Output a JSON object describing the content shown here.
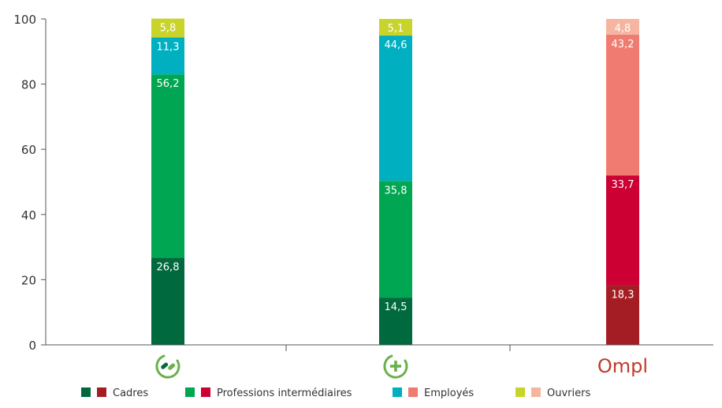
{
  "chart_data": {
    "type": "bar",
    "stacked": true,
    "ylim": [
      0,
      100
    ],
    "yticks": [
      0,
      20,
      40,
      60,
      80,
      100
    ],
    "grid": false,
    "legend_position": "bottom",
    "categories": [
      "pharmacie-icon",
      "pharmacie-cross-icon",
      "ompl-logo"
    ],
    "category_logo_text": [
      "",
      "",
      "Ompl"
    ],
    "series": [
      {
        "key": "cadres",
        "values": [
          26.8,
          14.5,
          18.3
        ],
        "labels": [
          "26,8",
          "14,5",
          "18,3"
        ]
      },
      {
        "key": "professions",
        "values": [
          56.2,
          35.8,
          33.7
        ],
        "labels": [
          "56,2",
          "35,8",
          "33,7"
        ]
      },
      {
        "key": "employes",
        "values": [
          11.3,
          44.6,
          43.2
        ],
        "labels": [
          "11,3",
          "44,6",
          "43,2"
        ]
      },
      {
        "key": "ouvriers",
        "values": [
          5.8,
          5.1,
          4.8
        ],
        "labels": [
          "5,8",
          "5,1",
          "4,8"
        ]
      }
    ],
    "colors": [
      [
        "#00693e",
        "#00a651",
        "#00b0c0",
        "#c8d42b"
      ],
      [
        "#00693e",
        "#00a651",
        "#00b0c0",
        "#c8d42b"
      ],
      [
        "#a51d24",
        "#cc0033",
        "#f07b70",
        "#f5b5a0"
      ]
    ],
    "legend": [
      {
        "label": "Cadres",
        "colors": [
          "#00693e",
          "#a51d24"
        ]
      },
      {
        "label": "Professions intermédiaires",
        "colors": [
          "#00a651",
          "#cc0033"
        ]
      },
      {
        "label": "Employés",
        "colors": [
          "#00b0c0",
          "#f07b70"
        ]
      },
      {
        "label": "Ouvriers",
        "colors": [
          "#c8d42b",
          "#f5b5a0"
        ]
      }
    ],
    "icon_colors": {
      "green": "#6ab04c",
      "dark": "#006a3a",
      "red": "#c0392b"
    }
  }
}
